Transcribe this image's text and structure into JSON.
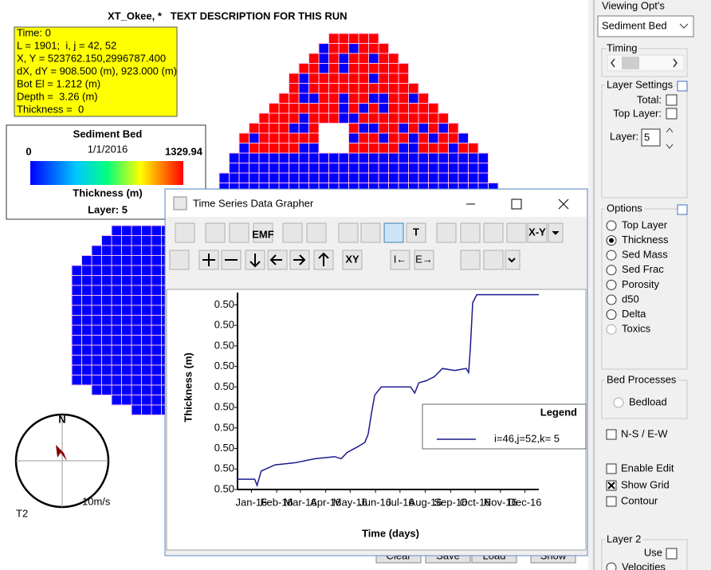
{
  "map": {
    "title": "XT_Okee, *   TEXT DESCRIPTION FOR THIS RUN",
    "info": [
      "Time: 0",
      "L = 1901;  i, j = 42, 52",
      "X, Y = 523762.150,2996787.400",
      "dX, dY = 908.500 (m), 923.000 (m)",
      "Bot El = 1.212 (m)",
      "Depth =  3.26 (m)",
      "Thickness =  0"
    ],
    "legend": {
      "title": "Sediment Bed",
      "min": 0,
      "date": "1/1/2016",
      "max": 1329.94,
      "variable": "Thickness (m)",
      "layer": "Layer: 5"
    },
    "compass": {
      "north": "N",
      "speed": "10m/s",
      "label": "T2"
    }
  },
  "panel": {
    "title": "Viewing Opt's",
    "view": "Sediment Bed",
    "timing": "Timing",
    "layer_settings": {
      "title": "Layer Settings",
      "total": "Total:",
      "top_layer": "Top Layer:",
      "layer": "Layer:",
      "layer_value": 5
    },
    "options": {
      "title": "Options",
      "items": [
        "Top Layer",
        "Thickness",
        "Sed Mass",
        "Sed Frac",
        "Porosity",
        "d50",
        "Delta",
        "Toxics"
      ],
      "selected": 1,
      "disabled": [
        7
      ]
    },
    "bed_processes": {
      "title": "Bed Processes",
      "item": "Bedload"
    },
    "checks": [
      {
        "label": "N-S / E-W",
        "checked": false
      },
      {
        "label": "Enable Edit",
        "checked": false
      },
      {
        "label": "Show Grid",
        "checked": true
      },
      {
        "label": "Contour",
        "checked": false
      }
    ],
    "layer2": {
      "title": "Layer 2",
      "use": "Use",
      "item": "Velocities"
    }
  },
  "buttons": [
    "Clear",
    "Save",
    "Load",
    "Show"
  ],
  "dialog": {
    "title": "Time Series Data Grapher",
    "toolbar": {
      "emf": "EMF",
      "text": "T",
      "xy": "X-Y",
      "xy2": "XY",
      "first": "I←",
      "last": "E→"
    }
  },
  "chart_data": {
    "type": "line",
    "x_label": "Time (days)",
    "y_label": "Thickness (m)",
    "legend_title": "Legend",
    "x": [
      -17,
      4,
      7,
      12,
      29,
      53,
      78,
      102,
      110,
      117,
      131,
      139,
      143,
      147,
      151,
      159,
      195,
      200,
      205,
      214,
      224,
      234,
      249,
      263,
      266,
      268,
      271,
      276,
      352
    ],
    "series": [
      {
        "name": "i=46,j=52,k= 5",
        "color": "#1a1a8c",
        "values": [
          0.496,
          0.496,
          0.4957,
          0.4964,
          0.4967,
          0.4968,
          0.497,
          0.4971,
          0.497,
          0.4973,
          0.4976,
          0.4978,
          0.4982,
          0.4992,
          0.5001,
          0.5005,
          0.5005,
          0.5002,
          0.5007,
          0.5008,
          0.501,
          0.5014,
          0.5013,
          0.5014,
          0.5012,
          0.5023,
          0.5046,
          0.505,
          0.505
        ]
      }
    ],
    "xlim": [
      -17,
      352
    ],
    "xticks": [
      {
        "value": 0,
        "label": "Jan-16"
      },
      {
        "value": 31,
        "label": "Feb-16"
      },
      {
        "value": 60,
        "label": "Mar-16"
      },
      {
        "value": 91,
        "label": "Apr-16"
      },
      {
        "value": 121,
        "label": "May-16"
      },
      {
        "value": 152,
        "label": "Jun-16"
      },
      {
        "value": 182,
        "label": "Jul-16"
      },
      {
        "value": 213,
        "label": "Aug-16"
      },
      {
        "value": 244,
        "label": "Sep-16"
      },
      {
        "value": 274,
        "label": "Oct-16"
      },
      {
        "value": 305,
        "label": "Nov-16"
      },
      {
        "value": 335,
        "label": "Dec-16"
      }
    ],
    "ylim": [
      0.4955,
      0.5051
    ],
    "yticks": [
      {
        "value": 0.4955,
        "label": "0.50"
      },
      {
        "value": 0.4965,
        "label": "0.50"
      },
      {
        "value": 0.4975,
        "label": "0.50"
      },
      {
        "value": 0.4985,
        "label": "0.50"
      },
      {
        "value": 0.4995,
        "label": "0.50"
      },
      {
        "value": 0.5005,
        "label": "0.50"
      },
      {
        "value": 0.5015,
        "label": "0.50"
      },
      {
        "value": 0.5025,
        "label": "0.50"
      },
      {
        "value": 0.5035,
        "label": "0.50"
      },
      {
        "value": 0.5045,
        "label": "0.50"
      }
    ]
  }
}
